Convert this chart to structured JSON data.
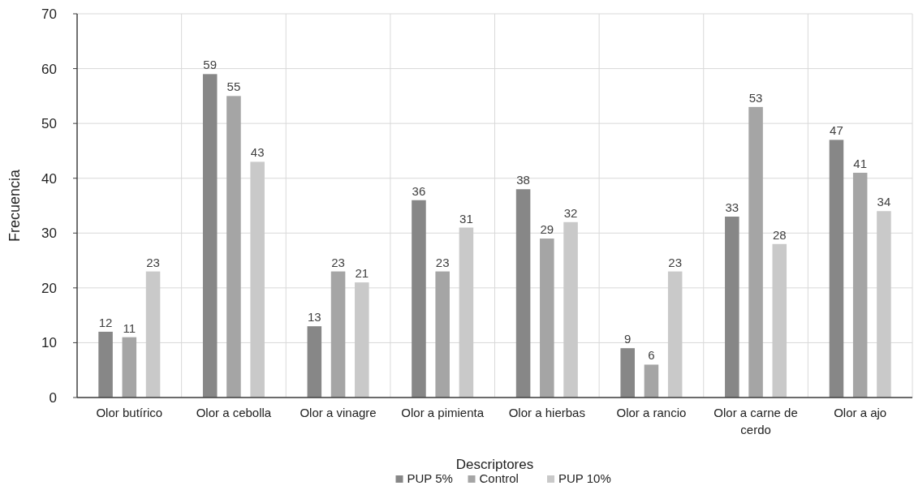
{
  "chart_data": {
    "type": "bar",
    "xlabel": "Descriptores",
    "ylabel": "Frecuencia",
    "categories": [
      "Olor butírico",
      "Olor a cebolla",
      "Olor a vinagre",
      "Olor a pimienta",
      "Olor a hierbas",
      "Olor a rancio",
      "Olor a carne de cerdo",
      "Olor a ajo"
    ],
    "series": [
      {
        "name": "PUP 5%",
        "color": "#878787",
        "values": [
          12,
          59,
          13,
          36,
          38,
          9,
          33,
          47
        ]
      },
      {
        "name": "Control",
        "color": "#a5a5a5",
        "values": [
          11,
          55,
          23,
          23,
          29,
          6,
          53,
          41
        ]
      },
      {
        "name": "PUP 10%",
        "color": "#c9c9c9",
        "values": [
          23,
          43,
          21,
          31,
          32,
          23,
          28,
          34
        ]
      }
    ],
    "ylim": [
      0,
      70
    ],
    "yticks": [
      0,
      10,
      20,
      30,
      40,
      50,
      60,
      70
    ],
    "grid": true,
    "legend": "bottom",
    "data_labels": true
  }
}
